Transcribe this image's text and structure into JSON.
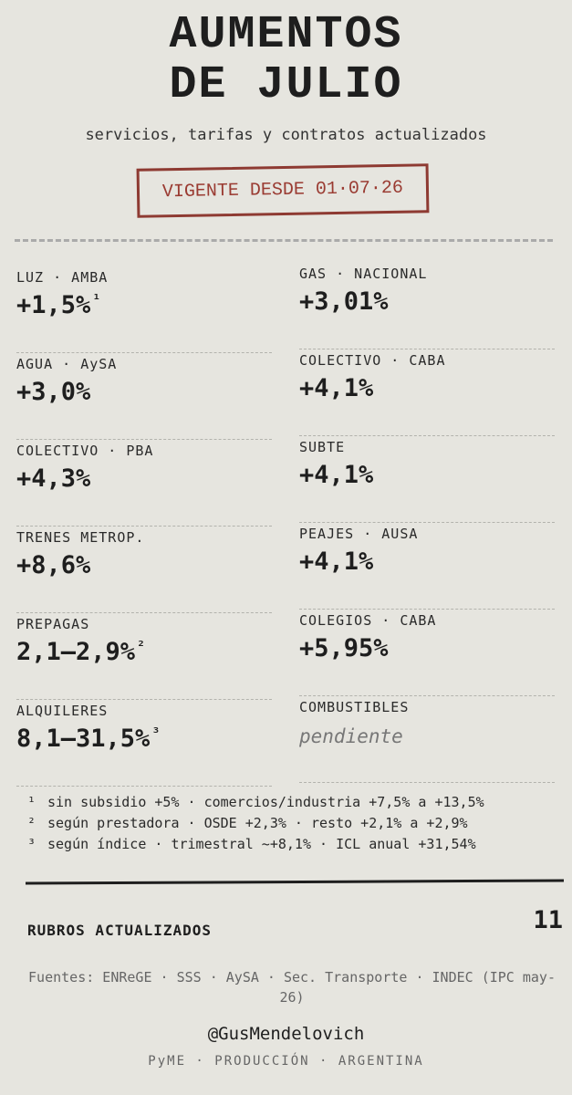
{
  "header": {
    "title_lines": [
      "AUMENTOS",
      "DE JULIO"
    ],
    "subtitle": "servicios, tarifas y contratos actualizados",
    "stamp": "VIGENTE DESDE 01·07·26"
  },
  "items": [
    {
      "label": "LUZ · AMBA",
      "value": "+1,5%",
      "note": "¹"
    },
    {
      "label": "GAS · NACIONAL",
      "value": "+3,01%"
    },
    {
      "label": "AGUA · AySA",
      "value": "+3,0%"
    },
    {
      "label": "COLECTIVO · CABA",
      "value": "+4,1%"
    },
    {
      "label": "COLECTIVO · PBA",
      "value": "+4,3%"
    },
    {
      "label": "SUBTE",
      "value": "+4,1%"
    },
    {
      "label": "TRENES METROP.",
      "value": "+8,6%"
    },
    {
      "label": "PEAJES · AUSA",
      "value": "+4,1%"
    },
    {
      "label": "PREPAGAS",
      "value": "2,1–2,9%",
      "note": "²"
    },
    {
      "label": "COLEGIOS · CABA",
      "value": "+5,95%"
    },
    {
      "label": "ALQUILERES",
      "value": "8,1–31,5%",
      "note": "³"
    },
    {
      "label": "COMBUSTIBLES",
      "value": "pendiente",
      "pending": true
    }
  ],
  "footnotes": [
    {
      "marker": "¹",
      "text": "sin subsidio +5% · comercios/industria +7,5% a +13,5%"
    },
    {
      "marker": "²",
      "text": "según prestadora · OSDE +2,3% · resto +2,1% a +2,9%"
    },
    {
      "marker": "³",
      "text": "según índice · trimestral ~+8,1% · ICL anual +31,54%"
    }
  ],
  "summary": {
    "label": "RUBROS ACTUALIZADOS",
    "count": 11
  },
  "footer": {
    "sources": "Fuentes: ENReGE · SSS · AySA · Sec. Transporte · INDEC (IPC may-26)",
    "handle": "@GusMendelovich",
    "tagline": "PyME · PRODUCCIÓN · ARGENTINA"
  }
}
